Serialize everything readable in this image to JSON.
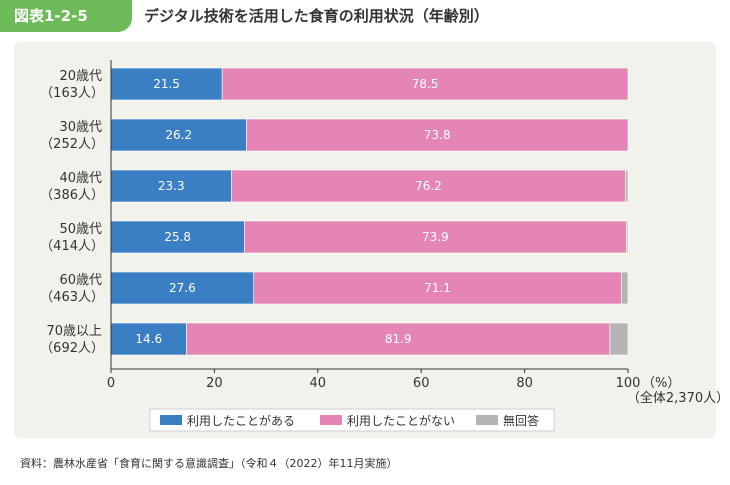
{
  "header": {
    "figure_label": "図表1-2-5",
    "title": "デジタル技術を活用した食育の利用状況（年齢別）"
  },
  "chart_data": {
    "type": "bar",
    "orientation": "horizontal",
    "stacked": true,
    "categories": [
      [
        "20歳代",
        "（163人）"
      ],
      [
        "30歳代",
        "（252人）"
      ],
      [
        "40歳代",
        "（386人）"
      ],
      [
        "50歳代",
        "（414人）"
      ],
      [
        "60歳代",
        "（463人）"
      ],
      [
        "70歳以上",
        "（692人）"
      ]
    ],
    "series": [
      {
        "name": "利用したことがある",
        "values": [
          21.5,
          26.2,
          23.3,
          25.8,
          27.6,
          14.6
        ],
        "color": "#3a7fc3",
        "labels": [
          "21.5",
          "26.2",
          "23.3",
          "25.8",
          "27.6",
          "14.6"
        ]
      },
      {
        "name": "利用したことがない",
        "values": [
          78.5,
          73.8,
          76.2,
          73.9,
          71.1,
          81.9
        ],
        "color": "#e585b5",
        "labels": [
          "78.5",
          "73.8",
          "76.2",
          "73.9",
          "71.1",
          "81.9"
        ]
      },
      {
        "name": "無回答",
        "values": [
          0.0,
          0.0,
          0.5,
          0.3,
          1.3,
          3.5
        ],
        "color": "#b5b5b5",
        "labels": [
          "",
          "",
          "",
          "",
          "",
          ""
        ]
      }
    ],
    "xlim": [
      0,
      100
    ],
    "x_ticks": [
      "0",
      "20",
      "40",
      "60",
      "80",
      "100"
    ],
    "x_unit": "（%）",
    "total_note": "（全体2,370人）",
    "legend_position": "bottom"
  },
  "source_note": "資料：農林水産省「食育に関する意識調査」（令和４（2022）年11月実施）"
}
